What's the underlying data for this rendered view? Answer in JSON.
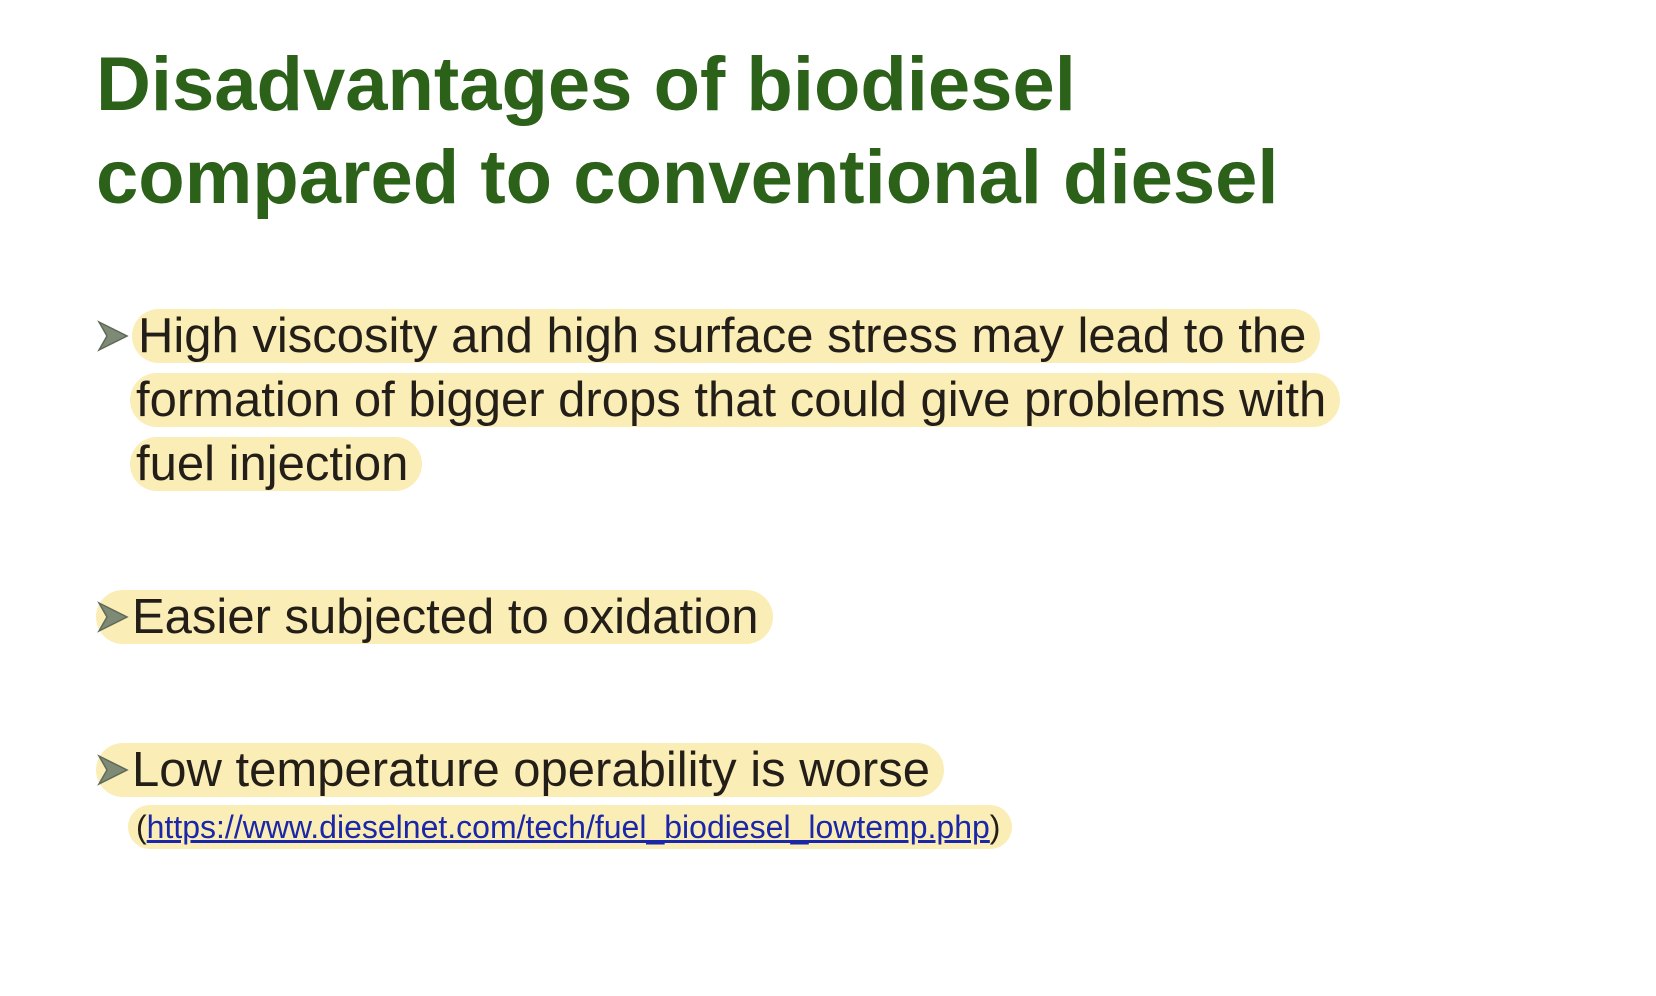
{
  "slide": {
    "title_line1": "Disadvantages of biodiesel",
    "title_line2": "compared to conventional diesel",
    "bullets": [
      {
        "lines": [
          "High viscosity and high surface stress may lead to the",
          "formation of bigger drops that could give problems with",
          "fuel injection"
        ]
      },
      {
        "text": "Easier subjected to oxidation"
      },
      {
        "text": "Low temperature operability is worse",
        "reference_open": "(",
        "reference_url": "https://www.dieselnet.com/tech/fuel_biodiesel_lowtemp.php",
        "reference_close": ")"
      }
    ],
    "bullet_icon": "arrow-bullet-icon"
  },
  "colors": {
    "title": "#2b6118",
    "body_text": "#231f18",
    "highlight": "#fbedb6",
    "link": "#1a27a8",
    "bullet": "#7e8a76"
  }
}
